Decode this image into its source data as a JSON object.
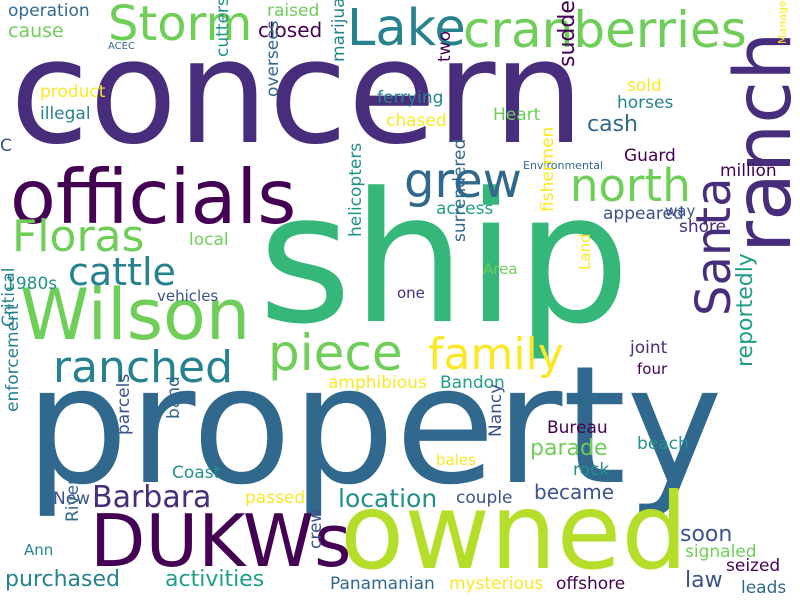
{
  "palette": {
    "indigo": "#472d7b",
    "purple": "#440154",
    "slate": "#3b528b",
    "blue": "#31688e",
    "teal": "#26828e",
    "cyan": "#21918c",
    "seagreen": "#1f9e89",
    "green": "#35b779",
    "lime": "#6ece58",
    "yellowgreen": "#b5de2b",
    "yellow": "#fde725"
  },
  "words": [
    {
      "text": "concern",
      "color": "indigo"
    },
    {
      "text": "property",
      "color": "blue"
    },
    {
      "text": "ship",
      "color": "green"
    },
    {
      "text": "owned",
      "color": "yellowgreen"
    },
    {
      "text": "officials",
      "color": "purple"
    },
    {
      "text": "Wilson",
      "color": "lime"
    },
    {
      "text": "ranch",
      "color": "indigo"
    },
    {
      "text": "DUKWs",
      "color": "purple"
    },
    {
      "text": "cranberries",
      "color": "lime"
    },
    {
      "text": "Lake",
      "color": "teal"
    },
    {
      "text": "Storm",
      "color": "lime"
    },
    {
      "text": "north",
      "color": "lime"
    },
    {
      "text": "grew",
      "color": "blue"
    },
    {
      "text": "Floras",
      "color": "lime"
    },
    {
      "text": "cattle",
      "color": "teal"
    },
    {
      "text": "ranched",
      "color": "teal"
    },
    {
      "text": "piece",
      "color": "lime"
    },
    {
      "text": "family",
      "color": "yellow"
    },
    {
      "text": "Santa",
      "color": "indigo"
    },
    {
      "text": "Barbara",
      "color": "indigo"
    },
    {
      "text": "location",
      "color": "cyan"
    },
    {
      "text": "operation",
      "color": "blue"
    },
    {
      "text": "cause",
      "color": "lime"
    },
    {
      "text": "raised",
      "color": "lime"
    },
    {
      "text": "closed",
      "color": "purple"
    },
    {
      "text": "ACEC",
      "color": "blue"
    },
    {
      "text": "two",
      "color": "purple"
    },
    {
      "text": "product",
      "color": "yellow"
    },
    {
      "text": "illegal",
      "color": "teal"
    },
    {
      "text": "cutters",
      "color": "cyan"
    },
    {
      "text": "oversees",
      "color": "blue"
    },
    {
      "text": "marijuana",
      "color": "teal"
    },
    {
      "text": "suddenly",
      "color": "purple"
    },
    {
      "text": "ferrying",
      "color": "teal"
    },
    {
      "text": "sold",
      "color": "yellow"
    },
    {
      "text": "horses",
      "color": "teal"
    },
    {
      "text": "Management",
      "color": "yellow"
    },
    {
      "text": "chased",
      "color": "yellow"
    },
    {
      "text": "Heart",
      "color": "lime"
    },
    {
      "text": "cash",
      "color": "blue"
    },
    {
      "text": "C",
      "color": "slate"
    },
    {
      "text": "Environmental",
      "color": "blue"
    },
    {
      "text": "Guard",
      "color": "purple"
    },
    {
      "text": "million",
      "color": "purple"
    },
    {
      "text": "fishermen",
      "color": "yellow"
    },
    {
      "text": "access",
      "color": "seagreen"
    },
    {
      "text": "appeared",
      "color": "slate"
    },
    {
      "text": "way",
      "color": "slate"
    },
    {
      "text": "shore",
      "color": "indigo"
    },
    {
      "text": "local",
      "color": "lime"
    },
    {
      "text": "helicopters",
      "color": "cyan"
    },
    {
      "text": "surrendered",
      "color": "blue"
    },
    {
      "text": "Area",
      "color": "lime"
    },
    {
      "text": "Land",
      "color": "yellow"
    },
    {
      "text": "1980s",
      "color": "cyan"
    },
    {
      "text": "vehicles",
      "color": "slate"
    },
    {
      "text": "one",
      "color": "indigo"
    },
    {
      "text": "Critical",
      "color": "teal"
    },
    {
      "text": "joint",
      "color": "indigo"
    },
    {
      "text": "four",
      "color": "purple"
    },
    {
      "text": "amphibious",
      "color": "yellow"
    },
    {
      "text": "Bandon",
      "color": "seagreen"
    },
    {
      "text": "reportedly",
      "color": "seagreen"
    },
    {
      "text": "enforcement",
      "color": "teal"
    },
    {
      "text": "band",
      "color": "blue"
    },
    {
      "text": "parcels",
      "color": "slate"
    },
    {
      "text": "Nancy",
      "color": "slate"
    },
    {
      "text": "Bureau",
      "color": "purple"
    },
    {
      "text": "parade",
      "color": "lime"
    },
    {
      "text": "beach",
      "color": "cyan"
    },
    {
      "text": "bales",
      "color": "yellow"
    },
    {
      "text": "rock",
      "color": "cyan"
    },
    {
      "text": "Coast",
      "color": "cyan"
    },
    {
      "text": "became",
      "color": "slate"
    },
    {
      "text": "New",
      "color": "slate"
    },
    {
      "text": "passed",
      "color": "yellow"
    },
    {
      "text": "couple",
      "color": "slate"
    },
    {
      "text": "soon",
      "color": "slate"
    },
    {
      "text": "River",
      "color": "blue"
    },
    {
      "text": "crew",
      "color": "slate"
    },
    {
      "text": "Ann",
      "color": "teal"
    },
    {
      "text": "signaled",
      "color": "lime"
    },
    {
      "text": "seized",
      "color": "purple"
    },
    {
      "text": "purchased",
      "color": "teal"
    },
    {
      "text": "activities",
      "color": "seagreen"
    },
    {
      "text": "law",
      "color": "slate"
    },
    {
      "text": "leads",
      "color": "blue"
    },
    {
      "text": "Panamanian",
      "color": "blue"
    },
    {
      "text": "mysterious",
      "color": "yellow"
    },
    {
      "text": "offshore",
      "color": "purple"
    }
  ]
}
